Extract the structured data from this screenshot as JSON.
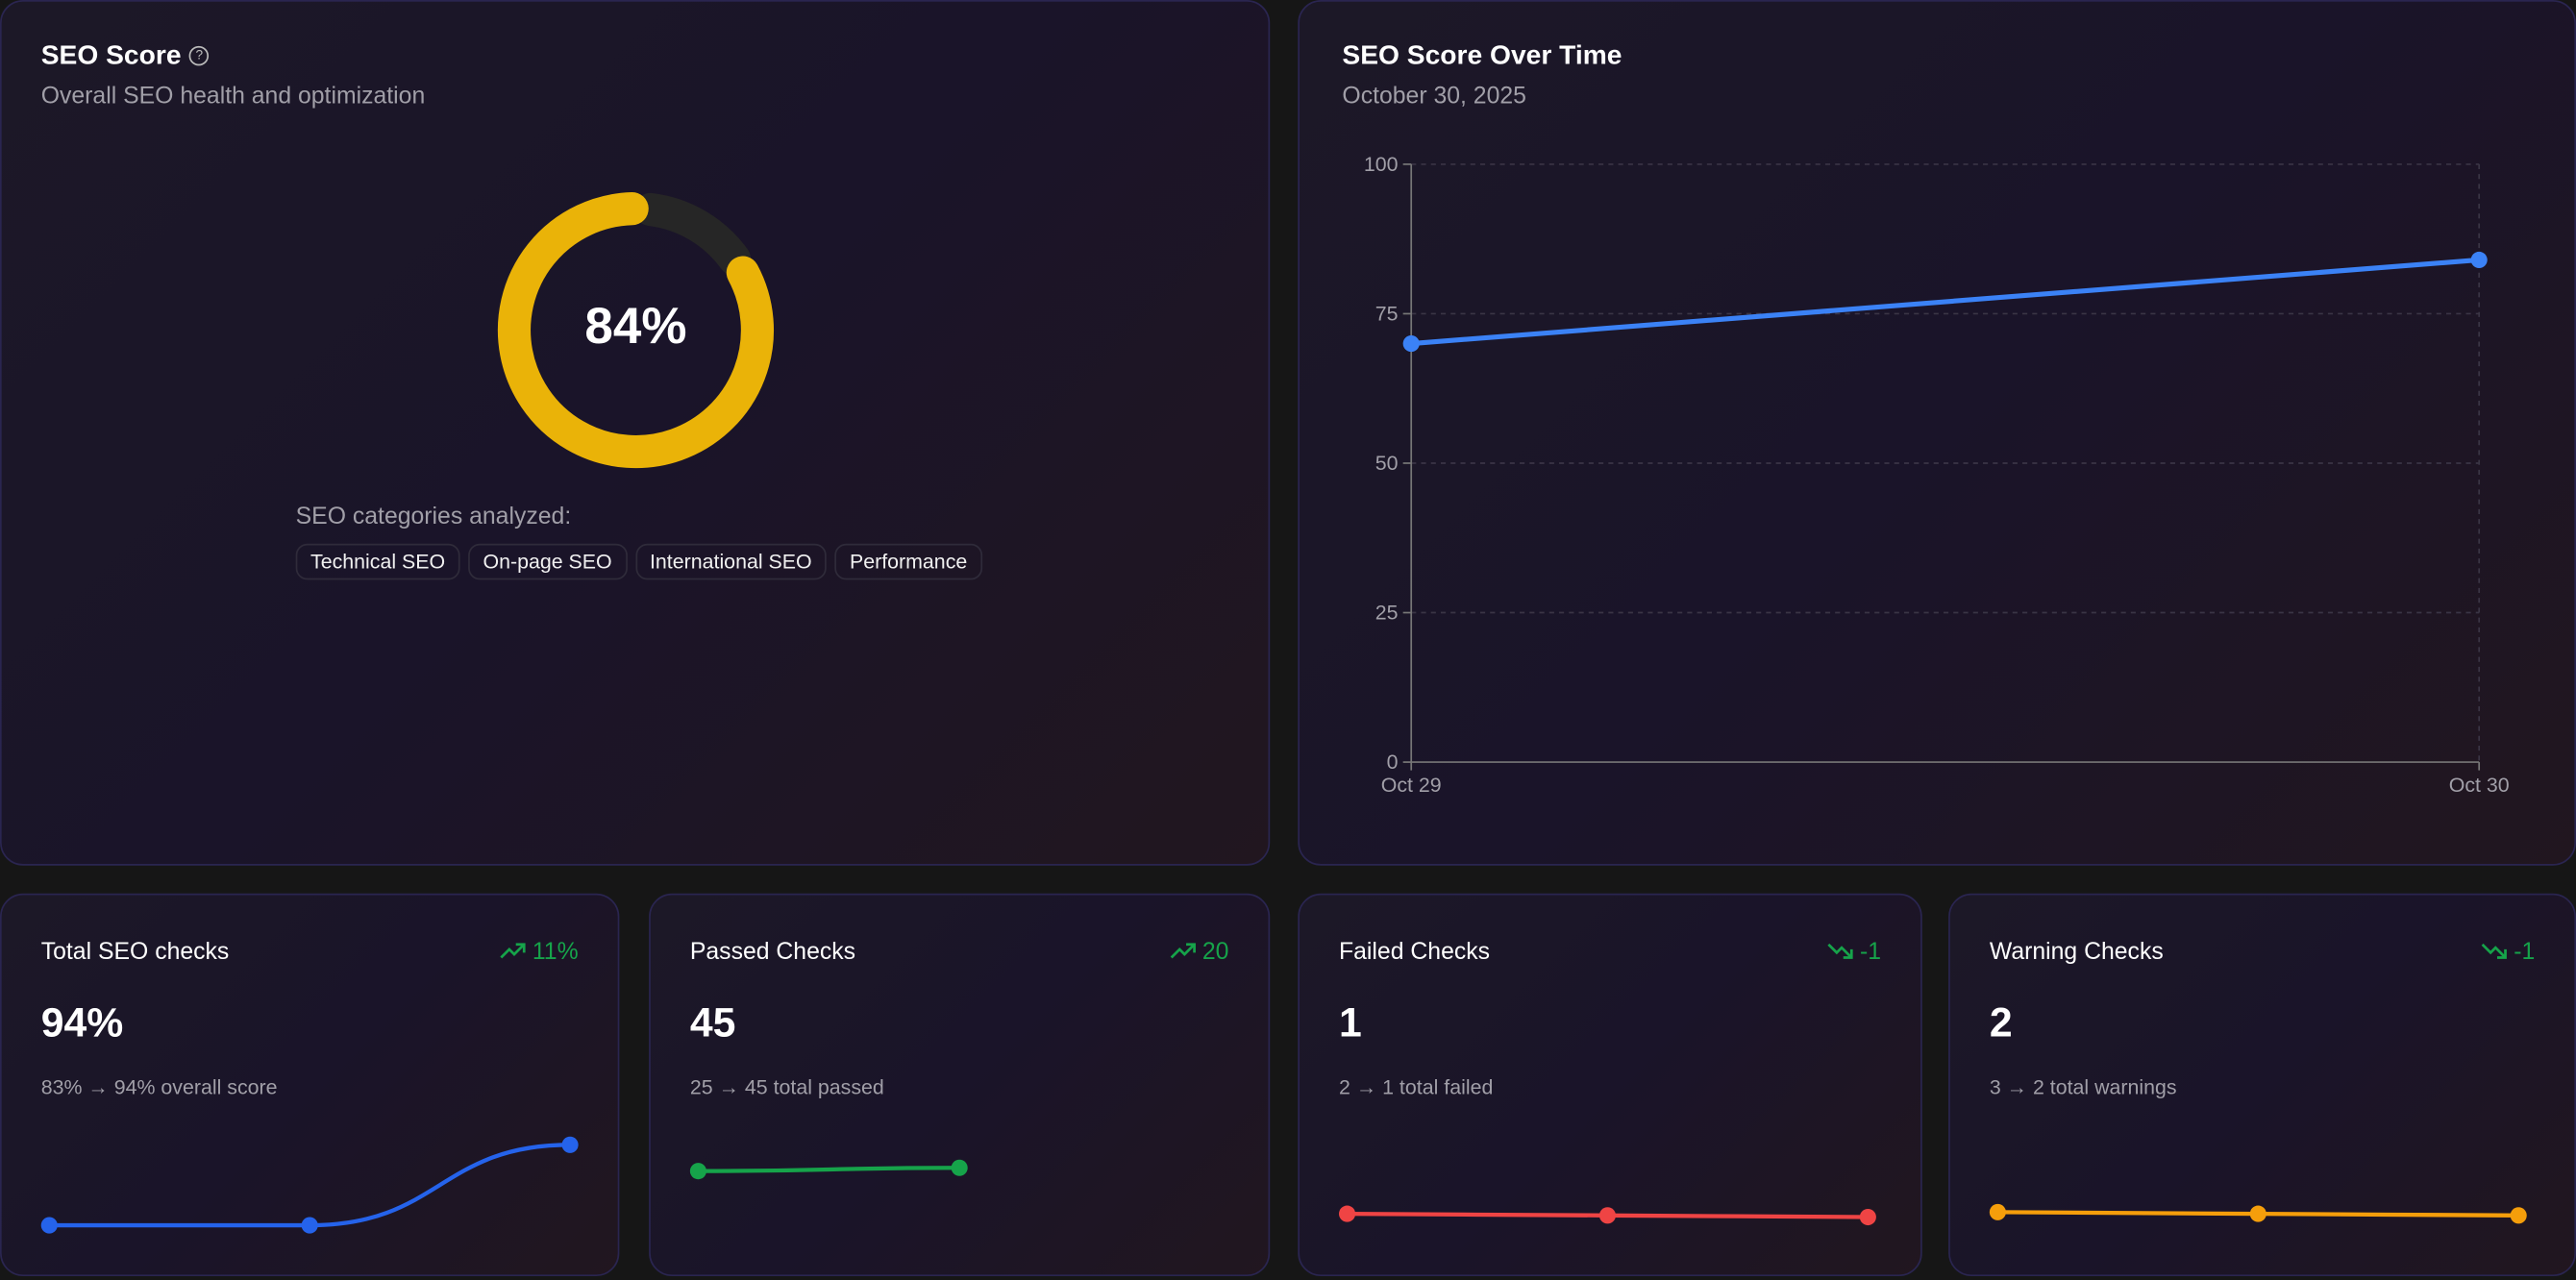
{
  "seo_score": {
    "title": "SEO Score",
    "help_icon": "question-circle-icon",
    "help_glyph": "?",
    "subtitle": "Overall SEO health and optimization",
    "score_percent": 84,
    "score_label": "84%",
    "ring_color": "#eab308",
    "track_color": "#262626",
    "categories_label": "SEO categories analyzed:",
    "categories": [
      "Technical SEO",
      "On-page SEO",
      "International SEO",
      "Performance"
    ]
  },
  "over_time": {
    "title": "SEO Score Over Time",
    "subtitle": "October 30, 2025",
    "chart_data": {
      "type": "line",
      "x": [
        "Oct 29",
        "Oct 30"
      ],
      "series": [
        {
          "values": [
            70,
            84
          ],
          "color": "#3b82f6"
        }
      ],
      "ylim": [
        0,
        100
      ],
      "yticks": [
        "0",
        "25",
        "50",
        "75",
        "100"
      ],
      "grid": true
    }
  },
  "stats": [
    {
      "title": "Total SEO checks",
      "trend": "11%",
      "trend_dir": "up",
      "value": "94%",
      "desc": "83% → 94% overall score",
      "color": "#2563eb",
      "spark": [
        83,
        83,
        94
      ]
    },
    {
      "title": "Passed Checks",
      "trend": "20",
      "trend_dir": "up",
      "value": "45",
      "desc": "25 → 45 total passed",
      "color": "#16a34a",
      "spark": [
        25,
        45
      ]
    },
    {
      "title": "Failed Checks",
      "trend": "-1",
      "trend_dir": "down",
      "value": "1",
      "desc": "2 → 1 total failed",
      "color": "#ef4444",
      "spark": [
        2,
        1.5,
        1
      ]
    },
    {
      "title": "Warning Checks",
      "trend": "-1",
      "trend_dir": "down",
      "value": "2",
      "desc": "3 → 2 total warnings",
      "color": "#f59e0b",
      "spark": [
        3,
        2.5,
        2
      ]
    }
  ],
  "trend_color": "#16a34a"
}
